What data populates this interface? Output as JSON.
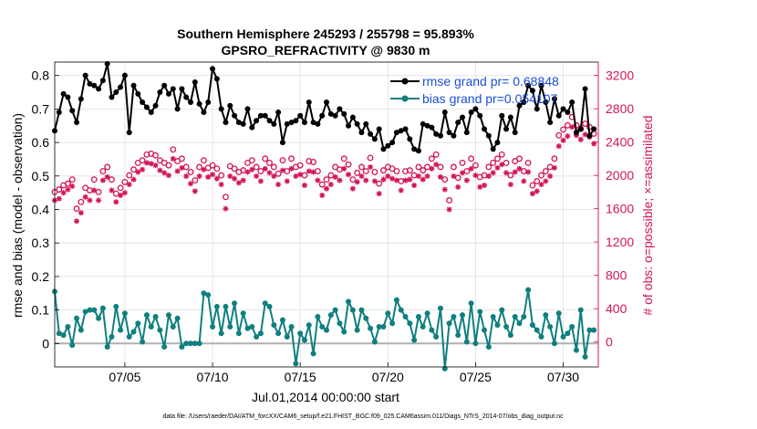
{
  "colors": {
    "rmse": "#000000",
    "bias": "#0f7f7f",
    "obs": "#d4145a",
    "legend_text": "#1a4fd6",
    "grid": "#e0e0e0",
    "zero_line": "#b0b0b0"
  },
  "chart_data": {
    "type": "line",
    "title_line1": "Southern Hemisphere 245293 / 255798 = 95.893%",
    "title_line2": "GPSRO_REFRACTIVITY @ 9830 m",
    "xlabel": "Jul.01,2014 00:00:00 start",
    "ylabel_left": "rmse and bias (model - observation)",
    "ylabel_right": "# of obs: o=possible; ×=assimilated",
    "footnote": "data file: /Users/raeder/DAI/ATM_forcXX/CAM6_setup/f.e21.FHIST_BGC.f09_025.CAM6assim.011/Diags_NTrS_2014-07/obs_diag_output.nc",
    "legend": [
      "rmse grand pr= 0.68848",
      "bias grand pr=0.054107"
    ],
    "xlim": [
      1,
      32
    ],
    "x_ticks": [
      5,
      10,
      15,
      20,
      25,
      30
    ],
    "x_tick_labels": [
      "07/05",
      "07/10",
      "07/15",
      "07/20",
      "07/25",
      "07/30"
    ],
    "ylim_left": [
      -0.07,
      0.84
    ],
    "y_ticks_left": [
      0,
      0.1,
      0.2,
      0.3,
      0.4,
      0.5,
      0.6,
      0.7,
      0.8
    ],
    "y_tick_labels_left": [
      "0",
      "0.1",
      "0.2",
      "0.3",
      "0.4",
      "0.5",
      "0.6",
      "0.7",
      "0.8"
    ],
    "ylim_right": [
      -300,
      3360
    ],
    "y_ticks_right": [
      0,
      400,
      800,
      1200,
      1600,
      2000,
      2400,
      2800,
      3200
    ],
    "y_tick_labels_right": [
      "0",
      "400",
      "800",
      "1200",
      "1600",
      "2000",
      "2400",
      "2800",
      "3200"
    ],
    "series": [
      {
        "name": "rmse",
        "axis": "left",
        "style": "line-dot",
        "x": [
          1.0,
          1.25,
          1.5,
          1.75,
          2.0,
          2.25,
          2.5,
          2.75,
          3.0,
          3.25,
          3.5,
          3.75,
          4.0,
          4.25,
          4.5,
          4.75,
          5.0,
          5.25,
          5.5,
          5.75,
          6.0,
          6.25,
          6.5,
          6.75,
          7.0,
          7.25,
          7.5,
          7.75,
          8.0,
          8.25,
          8.5,
          8.75,
          9.0,
          9.25,
          9.5,
          9.75,
          10.0,
          10.25,
          10.5,
          10.75,
          11.0,
          11.25,
          11.5,
          11.75,
          12.0,
          12.25,
          12.5,
          12.75,
          13.0,
          13.25,
          13.5,
          13.75,
          14.0,
          14.25,
          14.5,
          14.75,
          15.0,
          15.25,
          15.5,
          15.75,
          16.0,
          16.25,
          16.5,
          16.75,
          17.0,
          17.25,
          17.5,
          17.75,
          18.0,
          18.25,
          18.5,
          18.75,
          19.0,
          19.25,
          19.5,
          19.75,
          20.0,
          20.25,
          20.5,
          20.75,
          21.0,
          21.25,
          21.5,
          21.75,
          22.0,
          22.25,
          22.5,
          22.75,
          23.0,
          23.25,
          23.5,
          23.75,
          24.0,
          24.25,
          24.5,
          24.75,
          25.0,
          25.25,
          25.5,
          25.75,
          26.0,
          26.25,
          26.5,
          26.75,
          27.0,
          27.25,
          27.5,
          27.75,
          28.0,
          28.25,
          28.5,
          28.75,
          29.0,
          29.25,
          29.5,
          29.75,
          30.0,
          30.25,
          30.5,
          30.75,
          31.0,
          31.25,
          31.5,
          31.75
        ],
        "values": [
          0.635,
          0.69,
          0.745,
          0.735,
          0.695,
          0.66,
          0.73,
          0.8,
          0.775,
          0.77,
          0.76,
          0.785,
          0.835,
          0.735,
          0.75,
          0.765,
          0.8,
          0.63,
          0.77,
          0.745,
          0.72,
          0.705,
          0.69,
          0.71,
          0.75,
          0.77,
          0.745,
          0.76,
          0.7,
          0.76,
          0.735,
          0.72,
          0.78,
          0.715,
          0.69,
          0.72,
          0.82,
          0.79,
          0.7,
          0.66,
          0.71,
          0.68,
          0.66,
          0.655,
          0.7,
          0.645,
          0.665,
          0.68,
          0.68,
          0.665,
          0.655,
          0.69,
          0.6,
          0.655,
          0.66,
          0.665,
          0.68,
          0.66,
          0.72,
          0.66,
          0.655,
          0.68,
          0.72,
          0.685,
          0.68,
          0.7,
          0.685,
          0.65,
          0.675,
          0.655,
          0.63,
          0.655,
          0.625,
          0.61,
          0.64,
          0.58,
          0.59,
          0.6,
          0.63,
          0.635,
          0.64,
          0.61,
          0.58,
          0.575,
          0.655,
          0.65,
          0.645,
          0.625,
          0.62,
          0.69,
          0.63,
          0.62,
          0.66,
          0.675,
          0.63,
          0.69,
          0.7,
          0.68,
          0.64,
          0.62,
          0.58,
          0.6,
          0.68,
          0.64,
          0.675,
          0.63,
          0.71,
          0.72,
          0.77,
          0.755,
          0.7,
          0.77,
          0.72,
          0.66,
          0.73,
          0.68,
          0.7,
          0.69,
          0.72,
          0.63,
          0.64,
          0.76,
          0.62,
          0.64
        ]
      },
      {
        "name": "bias",
        "axis": "left",
        "style": "line-dot",
        "x": [
          1.0,
          1.25,
          1.5,
          1.75,
          2.0,
          2.25,
          2.5,
          2.75,
          3.0,
          3.25,
          3.5,
          3.75,
          4.0,
          4.25,
          4.5,
          4.75,
          5.0,
          5.25,
          5.5,
          5.75,
          6.0,
          6.25,
          6.5,
          6.75,
          7.0,
          7.25,
          7.5,
          7.75,
          8.0,
          8.25,
          8.5,
          8.75,
          9.0,
          9.25,
          9.5,
          9.75,
          10.0,
          10.25,
          10.5,
          10.75,
          11.0,
          11.25,
          11.5,
          11.75,
          12.0,
          12.25,
          12.5,
          12.75,
          13.0,
          13.25,
          13.5,
          13.75,
          14.0,
          14.25,
          14.5,
          14.75,
          15.0,
          15.25,
          15.5,
          15.75,
          16.0,
          16.25,
          16.5,
          16.75,
          17.0,
          17.25,
          17.5,
          17.75,
          18.0,
          18.25,
          18.5,
          18.75,
          19.0,
          19.25,
          19.5,
          19.75,
          20.0,
          20.25,
          20.5,
          20.75,
          21.0,
          21.25,
          21.5,
          21.75,
          22.0,
          22.25,
          22.5,
          22.75,
          23.0,
          23.25,
          23.5,
          23.75,
          24.0,
          24.25,
          24.5,
          24.75,
          25.0,
          25.25,
          25.5,
          25.75,
          26.0,
          26.25,
          26.5,
          26.75,
          27.0,
          27.25,
          27.5,
          27.75,
          28.0,
          28.25,
          28.5,
          28.75,
          29.0,
          29.25,
          29.5,
          29.75,
          30.0,
          30.25,
          30.5,
          30.75,
          31.0,
          31.25,
          31.5,
          31.75
        ],
        "values": [
          0.155,
          0.03,
          0.025,
          0.05,
          -0.005,
          0.075,
          0.04,
          0.095,
          0.1,
          0.1,
          0.075,
          0.105,
          -0.01,
          0.02,
          0.11,
          0.04,
          0.09,
          0.02,
          0.035,
          0.06,
          0.005,
          0.085,
          0.05,
          0.08,
          0.04,
          -0.01,
          0.085,
          0.05,
          0.075,
          -0.01,
          0.0,
          0.0,
          0.0,
          0.0,
          0.15,
          0.145,
          0.05,
          0.11,
          0.03,
          0.11,
          0.05,
          0.12,
          0.03,
          0.09,
          0.045,
          0.05,
          0.02,
          0.03,
          0.12,
          0.11,
          0.055,
          0.03,
          0.07,
          0.02,
          0.05,
          -0.06,
          0.03,
          0.01,
          0.055,
          -0.03,
          0.08,
          0.05,
          0.04,
          0.085,
          0.1,
          0.06,
          0.035,
          0.125,
          0.1,
          0.04,
          0.1,
          0.075,
          0.045,
          0.005,
          0.05,
          0.05,
          0.09,
          0.06,
          0.13,
          0.1,
          0.08,
          0.06,
          0.01,
          0.08,
          0.05,
          0.09,
          0.04,
          0.02,
          0.105,
          -0.075,
          0.06,
          0.08,
          0.025,
          0.085,
          0.005,
          0.12,
          0.0,
          0.095,
          0.04,
          -0.01,
          0.08,
          0.055,
          0.1,
          0.05,
          0.025,
          0.08,
          0.06,
          0.08,
          0.16,
          0.055,
          0.04,
          0.02,
          0.085,
          0.05,
          0.0,
          0.09,
          0.02,
          0.03,
          0.05,
          -0.02,
          0.1,
          -0.04,
          0.04,
          0.04
        ]
      },
      {
        "name": "possible",
        "axis": "right",
        "style": "circle",
        "x": [
          1.0,
          1.25,
          1.5,
          1.75,
          2.0,
          2.25,
          2.5,
          2.75,
          3.0,
          3.25,
          3.5,
          3.75,
          4.0,
          4.25,
          4.5,
          4.75,
          5.0,
          5.25,
          5.5,
          5.75,
          6.0,
          6.25,
          6.5,
          6.75,
          7.0,
          7.25,
          7.5,
          7.75,
          8.0,
          8.25,
          8.5,
          8.75,
          9.0,
          9.25,
          9.5,
          9.75,
          10.0,
          10.25,
          10.5,
          10.75,
          11.0,
          11.25,
          11.5,
          11.75,
          12.0,
          12.25,
          12.5,
          12.75,
          13.0,
          13.25,
          13.5,
          13.75,
          14.0,
          14.25,
          14.5,
          14.75,
          15.0,
          15.25,
          15.5,
          15.75,
          16.0,
          16.25,
          16.5,
          16.75,
          17.0,
          17.25,
          17.5,
          17.75,
          18.0,
          18.25,
          18.5,
          18.75,
          19.0,
          19.25,
          19.5,
          19.75,
          20.0,
          20.25,
          20.5,
          20.75,
          21.0,
          21.25,
          21.5,
          21.75,
          22.0,
          22.25,
          22.5,
          22.75,
          23.0,
          23.25,
          23.5,
          23.75,
          24.0,
          24.25,
          24.5,
          24.75,
          25.0,
          25.25,
          25.5,
          25.75,
          26.0,
          26.25,
          26.5,
          26.75,
          27.0,
          27.25,
          27.5,
          27.75,
          28.0,
          28.25,
          28.5,
          28.75,
          29.0,
          29.25,
          29.5,
          29.75,
          30.0,
          30.25,
          30.5,
          30.75,
          31.0,
          31.25,
          31.5,
          31.75
        ],
        "values": [
          1800,
          1830,
          1880,
          1900,
          1950,
          1600,
          1680,
          1850,
          1820,
          1950,
          1800,
          2050,
          2100,
          1950,
          1780,
          1850,
          1920,
          2000,
          2070,
          2150,
          2180,
          2250,
          2260,
          2240,
          2180,
          2150,
          2120,
          2310,
          2170,
          2200,
          2100,
          2040,
          1940,
          2100,
          2180,
          2090,
          2120,
          2080,
          2000,
          1740,
          2110,
          2080,
          2040,
          2060,
          2150,
          2180,
          2100,
          2050,
          2200,
          2150,
          2100,
          2020,
          2180,
          2050,
          2200,
          2100,
          2120,
          2000,
          2170,
          2160,
          2050,
          1890,
          1950,
          2000,
          2100,
          2070,
          2200,
          2130,
          1950,
          2030,
          2100,
          2050,
          2210,
          2040,
          1900,
          2060,
          2100,
          2080,
          2050,
          1930,
          2050,
          2060,
          2000,
          2100,
          2060,
          2100,
          2200,
          2250,
          2100,
          1950,
          1700,
          2100,
          1970,
          2150,
          2050,
          2200,
          2120,
          1980,
          2000,
          2100,
          2150,
          2200,
          2250,
          2150,
          2000,
          2170,
          2200,
          2050,
          2150,
          1880,
          1930,
          2000,
          2050,
          2100,
          2200,
          2480,
          2550,
          2600,
          2700,
          2600,
          2560,
          2620,
          2580,
          2500
        ]
      },
      {
        "name": "assimilated",
        "axis": "right",
        "style": "cross",
        "x": [
          1.0,
          1.25,
          1.5,
          1.75,
          2.0,
          2.25,
          2.5,
          2.75,
          3.0,
          3.25,
          3.5,
          3.75,
          4.0,
          4.25,
          4.5,
          4.75,
          5.0,
          5.25,
          5.5,
          5.75,
          6.0,
          6.25,
          6.5,
          6.75,
          7.0,
          7.25,
          7.5,
          7.75,
          8.0,
          8.25,
          8.5,
          8.75,
          9.0,
          9.25,
          9.5,
          9.75,
          10.0,
          10.25,
          10.5,
          10.75,
          11.0,
          11.25,
          11.5,
          11.75,
          12.0,
          12.25,
          12.5,
          12.75,
          13.0,
          13.25,
          13.5,
          13.75,
          14.0,
          14.25,
          14.5,
          14.75,
          15.0,
          15.25,
          15.5,
          15.75,
          16.0,
          16.25,
          16.5,
          16.75,
          17.0,
          17.25,
          17.5,
          17.75,
          18.0,
          18.25,
          18.5,
          18.75,
          19.0,
          19.25,
          19.5,
          19.75,
          20.0,
          20.25,
          20.5,
          20.75,
          21.0,
          21.25,
          21.5,
          21.75,
          22.0,
          22.25,
          22.5,
          22.75,
          23.0,
          23.25,
          23.5,
          23.75,
          24.0,
          24.25,
          24.5,
          24.75,
          25.0,
          25.25,
          25.5,
          25.75,
          26.0,
          26.25,
          26.5,
          26.75,
          27.0,
          27.25,
          27.5,
          27.75,
          28.0,
          28.25,
          28.5,
          28.75,
          29.0,
          29.25,
          29.5,
          29.75,
          30.0,
          30.25,
          30.5,
          30.75,
          31.0,
          31.25,
          31.5,
          31.75
        ],
        "values": [
          1700,
          1720,
          1790,
          1830,
          1870,
          1450,
          1550,
          1740,
          1700,
          1820,
          1700,
          1940,
          1980,
          1820,
          1680,
          1760,
          1790,
          1890,
          1950,
          2040,
          2070,
          2150,
          2140,
          2120,
          2060,
          2030,
          2000,
          2200,
          2050,
          2090,
          1990,
          1900,
          1810,
          1990,
          2070,
          1980,
          2010,
          1960,
          1890,
          1600,
          1990,
          1960,
          1910,
          1940,
          2040,
          2070,
          1990,
          1930,
          2080,
          2030,
          1990,
          1890,
          2060,
          1930,
          2080,
          1990,
          2010,
          1880,
          2050,
          2040,
          1940,
          1760,
          1840,
          1890,
          1980,
          1940,
          2080,
          2010,
          1840,
          1920,
          1990,
          1940,
          2100,
          1930,
          1780,
          1950,
          1990,
          1960,
          1940,
          1820,
          1940,
          1950,
          1880,
          1990,
          1950,
          1990,
          2080,
          2130,
          1980,
          1830,
          1590,
          1990,
          1860,
          2030,
          1940,
          2080,
          2000,
          1860,
          1880,
          1990,
          2030,
          2090,
          2130,
          2030,
          1890,
          2040,
          2080,
          1930,
          2040,
          1780,
          1810,
          1890,
          1930,
          1990,
          2090,
          2350,
          2420,
          2470,
          2580,
          2480,
          2430,
          2490,
          2460,
          2380
        ]
      }
    ]
  }
}
